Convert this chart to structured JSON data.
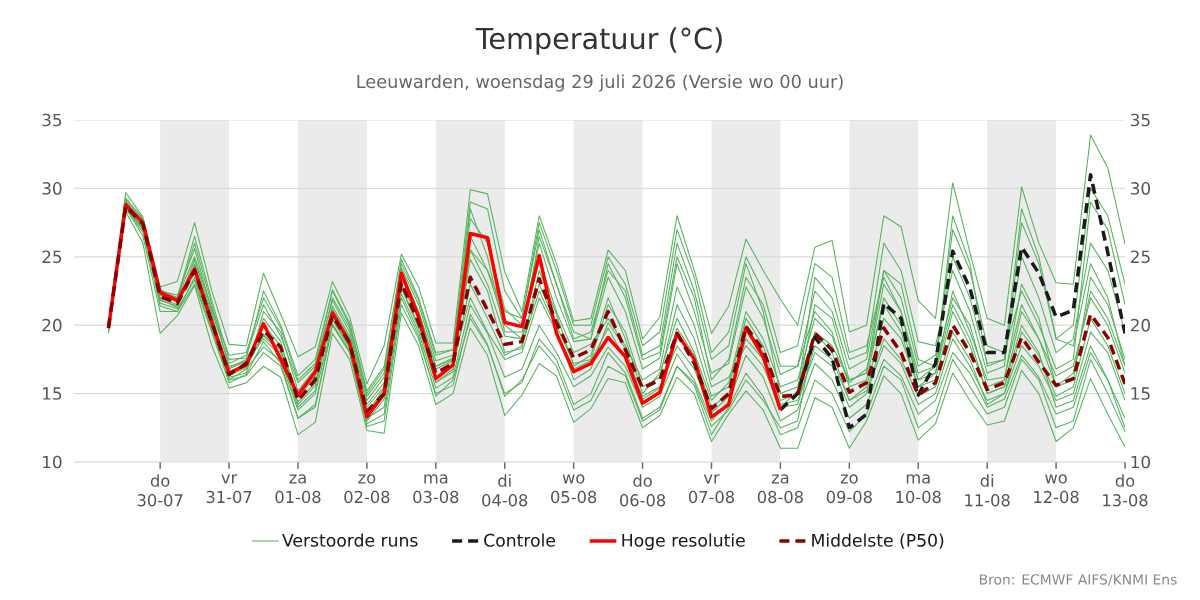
{
  "chart_data": {
    "type": "line",
    "title": "Temperatuur (°C)",
    "subtitle": "Leeuwarden, woensdag 29 juli 2026 (Versie wo 00 uur)",
    "x": [
      "2026-07-29T06:00",
      "2026-07-29T12:00",
      "2026-07-29T18:00",
      "2026-07-30T00:00",
      "2026-07-30T06:00",
      "2026-07-30T12:00",
      "2026-07-30T18:00",
      "2026-07-31T00:00",
      "2026-07-31T06:00",
      "2026-07-31T12:00",
      "2026-07-31T18:00",
      "2026-08-01T00:00",
      "2026-08-01T06:00",
      "2026-08-01T12:00",
      "2026-08-01T18:00",
      "2026-08-02T00:00",
      "2026-08-02T06:00",
      "2026-08-02T12:00",
      "2026-08-02T18:00",
      "2026-08-03T00:00",
      "2026-08-03T06:00",
      "2026-08-03T12:00",
      "2026-08-03T18:00",
      "2026-08-04T00:00",
      "2026-08-04T06:00",
      "2026-08-04T12:00",
      "2026-08-04T18:00",
      "2026-08-05T00:00",
      "2026-08-05T06:00",
      "2026-08-05T12:00",
      "2026-08-05T18:00",
      "2026-08-06T00:00",
      "2026-08-06T06:00",
      "2026-08-06T12:00",
      "2026-08-06T18:00",
      "2026-08-07T00:00",
      "2026-08-07T06:00",
      "2026-08-07T12:00",
      "2026-08-07T18:00",
      "2026-08-08T00:00",
      "2026-08-08T06:00",
      "2026-08-08T12:00",
      "2026-08-08T18:00",
      "2026-08-09T00:00",
      "2026-08-09T06:00",
      "2026-08-09T12:00",
      "2026-08-09T18:00",
      "2026-08-10T00:00",
      "2026-08-10T06:00",
      "2026-08-10T12:00",
      "2026-08-10T18:00",
      "2026-08-11T00:00",
      "2026-08-11T06:00",
      "2026-08-11T12:00",
      "2026-08-11T18:00",
      "2026-08-12T00:00",
      "2026-08-12T06:00",
      "2026-08-12T12:00",
      "2026-08-12T18:00",
      "2026-08-13T00:00"
    ],
    "xlim": [
      "2026-07-28T18:00",
      "2026-08-13T00:00"
    ],
    "xticks": [
      {
        "value": "2026-07-30",
        "label": "do 30-07"
      },
      {
        "value": "2026-07-31",
        "label": "vr 31-07"
      },
      {
        "value": "2026-08-01",
        "label": "za 01-08"
      },
      {
        "value": "2026-08-02",
        "label": "zo 02-08"
      },
      {
        "value": "2026-08-03",
        "label": "ma 03-08"
      },
      {
        "value": "2026-08-04",
        "label": "di 04-08"
      },
      {
        "value": "2026-08-05",
        "label": "wo 05-08"
      },
      {
        "value": "2026-08-06",
        "label": "do 06-08"
      },
      {
        "value": "2026-08-07",
        "label": "vr 07-08"
      },
      {
        "value": "2026-08-08",
        "label": "za 08-08"
      },
      {
        "value": "2026-08-09",
        "label": "zo 09-08"
      },
      {
        "value": "2026-08-10",
        "label": "ma 10-08"
      },
      {
        "value": "2026-08-11",
        "label": "di 11-08"
      },
      {
        "value": "2026-08-12",
        "label": "wo 12-08"
      },
      {
        "value": "2026-08-13",
        "label": "do 13-08"
      }
    ],
    "ylim": [
      10,
      35
    ],
    "yticks": [
      10,
      15,
      20,
      25,
      30,
      35
    ],
    "y2lim": [
      10,
      35
    ],
    "y2ticks": [
      10,
      15,
      20,
      25,
      30,
      35
    ],
    "grid": "y",
    "legend": "bottom",
    "bands": [
      {
        "axis": "x",
        "from": "2026-07-30",
        "to": "2026-07-31",
        "color": "#ebebeb"
      },
      {
        "axis": "x",
        "from": "2026-08-01",
        "to": "2026-08-02",
        "color": "#ebebeb"
      },
      {
        "axis": "x",
        "from": "2026-08-03",
        "to": "2026-08-04",
        "color": "#ebebeb"
      },
      {
        "axis": "x",
        "from": "2026-08-05",
        "to": "2026-08-06",
        "color": "#ebebeb"
      },
      {
        "axis": "x",
        "from": "2026-08-07",
        "to": "2026-08-08",
        "color": "#ebebeb"
      },
      {
        "axis": "x",
        "from": "2026-08-09",
        "to": "2026-08-10",
        "color": "#ebebeb"
      },
      {
        "axis": "x",
        "from": "2026-08-11",
        "to": "2026-08-12",
        "color": "#ebebeb"
      }
    ],
    "series": [
      {
        "name": "Verstoorde runs",
        "color": "#56b35e",
        "line_style": "solid",
        "values": [
          20.0,
          29.7,
          27.9,
          22.8,
          23.2,
          27.5,
          22.5,
          18.6,
          18.5,
          23.8,
          20.8,
          17.7,
          18.4,
          23.2,
          20.6,
          15.7,
          18.5,
          25.2,
          22.8,
          18.7,
          18.7,
          29.9,
          29.6,
          23.9,
          21.0,
          28.0,
          24.5,
          20.3,
          20.5,
          25.5,
          24.0,
          19.0,
          20.6,
          28.0,
          24.0,
          19.4,
          21.4,
          26.3,
          24.0,
          21.9,
          20.0,
          25.7,
          26.2,
          19.5,
          20.0,
          28.0,
          27.2,
          21.8,
          20.5,
          30.4,
          25.3,
          20.5,
          20.0,
          30.1,
          26.0,
          23.1,
          23.0,
          33.9,
          31.5,
          25.9
        ]
      },
      {
        "color": "#56b35e",
        "line_style": "solid",
        "values": [
          19.4,
          28.3,
          26.0,
          19.4,
          20.7,
          22.9,
          18.5,
          15.4,
          15.8,
          17.0,
          16.2,
          12.0,
          12.9,
          19.4,
          17.5,
          12.3,
          12.1,
          20.9,
          18.5,
          14.2,
          15.0,
          19.8,
          17.8,
          13.4,
          14.9,
          17.2,
          16.3,
          12.9,
          13.9,
          16.1,
          15.8,
          12.5,
          13.4,
          16.2,
          15.0,
          11.5,
          13.5,
          15.2,
          13.8,
          11.0,
          11.0,
          14.7,
          14.0,
          11.0,
          13.0,
          16.3,
          15.0,
          11.6,
          12.8,
          16.5,
          14.5,
          12.7,
          13.0,
          16.7,
          15.0,
          11.5,
          12.5,
          16.1,
          13.5,
          11.1
        ]
      },
      {
        "color": "#56b35e",
        "line_style": "solid",
        "values": [
          19.9,
          29.2,
          27.7,
          22.5,
          22.2,
          25.6,
          21.0,
          17.2,
          17.8,
          21.5,
          19.2,
          15.8,
          17.0,
          21.8,
          19.5,
          14.5,
          16.2,
          24.2,
          21.5,
          17.4,
          17.8,
          27.8,
          26.0,
          21.2,
          20.0,
          26.0,
          22.0,
          18.8,
          19.0,
          23.5,
          21.0,
          16.8,
          17.6,
          24.5,
          21.0,
          16.5,
          17.2,
          22.8,
          20.5,
          16.4,
          17.0,
          22.5,
          21.0,
          16.8,
          17.5,
          24.0,
          22.0,
          17.0,
          17.8,
          25.0,
          22.0,
          17.2,
          17.5,
          25.0,
          22.0,
          18.0,
          19.0,
          26.0,
          24.0,
          19.5
        ]
      },
      {
        "color": "#56b35e",
        "line_style": "solid",
        "values": [
          19.6,
          28.5,
          26.8,
          21.6,
          21.2,
          23.3,
          19.6,
          16.0,
          16.8,
          18.4,
          17.4,
          13.8,
          15.0,
          20.1,
          18.1,
          13.2,
          14.0,
          22.3,
          19.5,
          15.4,
          16.2,
          21.5,
          19.4,
          16.2,
          16.8,
          20.0,
          18.0,
          15.5,
          16.3,
          18.4,
          17.0,
          14.0,
          14.8,
          17.9,
          16.0,
          13.0,
          14.4,
          17.8,
          16.2,
          13.0,
          13.8,
          17.2,
          16.0,
          13.2,
          14.2,
          17.5,
          16.3,
          13.5,
          14.5,
          18.0,
          16.5,
          14.0,
          14.6,
          17.8,
          16.2,
          13.5,
          14.0,
          18.0,
          16.0,
          13.2
        ]
      },
      {
        "color": "#56b35e",
        "line_style": "solid",
        "values": [
          19.8,
          28.9,
          27.2,
          22.0,
          21.5,
          24.5,
          20.5,
          16.6,
          17.0,
          20.5,
          18.8,
          14.2,
          15.6,
          21.2,
          19.0,
          13.5,
          15.4,
          23.5,
          20.8,
          16.2,
          17.0,
          24.8,
          22.5,
          18.0,
          18.3,
          24.0,
          20.8,
          17.0,
          17.8,
          22.0,
          19.0,
          15.0,
          16.5,
          20.5,
          18.0,
          14.5,
          15.8,
          21.0,
          19.0,
          15.5,
          16.0,
          20.5,
          19.2,
          15.8,
          16.8,
          21.5,
          19.5,
          15.5,
          16.5,
          22.5,
          19.5,
          16.0,
          16.2,
          21.5,
          19.0,
          16.3,
          17.0,
          22.0,
          20.0,
          16.5
        ]
      },
      {
        "color": "#56b35e",
        "line_style": "solid",
        "values": [
          19.7,
          29.0,
          27.6,
          22.3,
          21.9,
          26.0,
          21.5,
          17.0,
          17.3,
          19.2,
          18.0,
          15.0,
          16.3,
          20.4,
          18.3,
          14.0,
          15.5,
          24.0,
          21.0,
          17.0,
          17.6,
          28.5,
          25.0,
          19.5,
          19.5,
          24.8,
          21.0,
          18.0,
          18.6,
          20.5,
          18.5,
          16.0,
          16.8,
          22.8,
          20.0,
          15.5,
          16.2,
          18.5,
          17.0,
          14.0,
          15.2,
          23.5,
          22.0,
          17.5,
          18.0,
          26.0,
          24.0,
          18.8,
          18.5,
          24.0,
          21.0,
          16.5,
          17.0,
          27.5,
          24.5,
          19.0,
          18.5,
          24.5,
          22.0,
          17.0
        ]
      },
      {
        "color": "#56b35e",
        "line_style": "solid",
        "values": [
          19.9,
          28.6,
          27.0,
          22.2,
          21.7,
          23.8,
          20.0,
          16.8,
          17.4,
          19.0,
          17.8,
          14.0,
          15.2,
          21.0,
          18.9,
          13.0,
          14.6,
          22.8,
          20.0,
          16.8,
          17.4,
          22.0,
          19.5,
          17.5,
          18.0,
          22.0,
          19.5,
          16.8,
          17.4,
          19.8,
          17.5,
          14.8,
          15.5,
          18.5,
          16.8,
          13.6,
          14.8,
          20.0,
          18.0,
          14.2,
          14.5,
          18.0,
          17.0,
          14.0,
          15.0,
          18.5,
          17.2,
          14.2,
          15.0,
          19.0,
          17.0,
          14.5,
          15.0,
          18.5,
          17.0,
          14.5,
          15.0,
          19.5,
          18.0,
          14.5
        ]
      },
      {
        "color": "#56b35e",
        "line_style": "solid",
        "values": [
          19.6,
          28.4,
          27.3,
          21.8,
          21.4,
          24.8,
          20.8,
          16.2,
          16.5,
          21.0,
          19.5,
          15.2,
          16.8,
          22.0,
          19.8,
          14.8,
          16.5,
          23.0,
          20.5,
          15.8,
          16.6,
          25.5,
          24.0,
          20.0,
          19.0,
          26.5,
          23.0,
          19.5,
          19.0,
          24.5,
          22.0,
          17.5,
          18.0,
          25.0,
          22.0,
          16.0,
          17.5,
          23.5,
          21.5,
          17.0,
          17.0,
          21.0,
          19.5,
          15.5,
          16.0,
          22.0,
          20.0,
          16.0,
          17.0,
          27.0,
          24.0,
          18.5,
          18.0,
          22.5,
          20.0,
          16.8,
          17.5,
          29.0,
          27.0,
          21.5
        ]
      },
      {
        "color": "#56b35e",
        "line_style": "solid",
        "values": [
          19.7,
          29.3,
          27.8,
          22.6,
          22.0,
          26.5,
          21.8,
          17.5,
          17.6,
          22.5,
          20.0,
          16.3,
          17.5,
          22.5,
          20.0,
          15.0,
          16.8,
          24.8,
          22.0,
          18.0,
          18.2,
          29.0,
          28.5,
          22.5,
          20.5,
          27.0,
          23.0,
          19.0,
          19.5,
          24.0,
          22.5,
          17.8,
          18.5,
          26.0,
          22.5,
          17.5,
          18.5,
          24.5,
          21.0,
          15.0,
          15.5,
          19.5,
          18.0,
          14.5,
          15.5,
          20.5,
          19.0,
          15.5,
          16.0,
          21.0,
          18.5,
          15.0,
          15.5,
          20.0,
          18.0,
          14.0,
          14.5,
          18.5,
          16.0,
          12.5
        ]
      },
      {
        "color": "#56b35e",
        "line_style": "solid",
        "values": [
          19.5,
          28.6,
          26.5,
          21.0,
          21.0,
          23.5,
          19.8,
          16.0,
          16.3,
          18.0,
          17.0,
          13.2,
          14.2,
          20.0,
          18.0,
          12.8,
          13.5,
          22.0,
          19.2,
          14.8,
          16.0,
          20.5,
          18.5,
          15.0,
          15.8,
          19.0,
          17.5,
          14.2,
          15.0,
          18.0,
          16.5,
          13.2,
          14.0,
          17.0,
          15.8,
          12.6,
          13.8,
          16.0,
          14.5,
          12.5,
          13.0,
          19.5,
          18.5,
          16.0,
          16.5,
          24.0,
          23.0,
          17.5,
          17.0,
          28.0,
          24.5,
          17.0,
          17.5,
          28.5,
          25.0,
          19.0,
          20.0,
          30.0,
          28.0,
          23.0
        ]
      },
      {
        "color": "#56b35e",
        "line_style": "solid",
        "values": [
          19.8,
          28.8,
          27.1,
          22.2,
          21.8,
          24.2,
          20.4,
          16.9,
          17.5,
          20.0,
          18.5,
          14.8,
          16.2,
          21.4,
          19.2,
          14.2,
          15.8,
          23.6,
          21.0,
          17.0,
          17.5,
          25.5,
          23.0,
          19.2,
          19.0,
          23.0,
          20.0,
          17.2,
          17.5,
          21.5,
          19.5,
          15.5,
          16.2,
          21.5,
          19.0,
          14.8,
          15.5,
          20.5,
          18.5,
          14.5,
          15.0,
          21.5,
          20.5,
          16.0,
          16.5,
          23.0,
          21.0,
          16.5,
          17.0,
          22.0,
          20.0,
          15.5,
          16.0,
          23.0,
          20.5,
          15.5,
          16.0,
          23.5,
          21.5,
          17.5
        ]
      },
      {
        "color": "#56b35e",
        "line_style": "solid",
        "values": [
          19.6,
          28.7,
          27.0,
          21.9,
          21.3,
          24.3,
          20.0,
          16.3,
          16.9,
          19.3,
          18.2,
          14.4,
          15.8,
          20.5,
          18.4,
          13.8,
          14.8,
          22.7,
          19.8,
          15.8,
          16.8,
          23.0,
          20.5,
          17.8,
          18.5,
          22.5,
          19.8,
          16.0,
          16.8,
          20.2,
          18.3,
          14.6,
          15.4,
          19.8,
          17.8,
          14.0,
          15.0,
          19.0,
          17.5,
          14.0,
          14.2,
          18.5,
          17.5,
          14.5,
          15.2,
          19.0,
          17.5,
          14.8,
          15.5,
          19.5,
          17.5,
          14.2,
          15.0,
          19.5,
          17.8,
          14.8,
          15.5,
          20.5,
          18.5,
          15.0
        ]
      },
      {
        "color": "#56b35e",
        "line_style": "solid",
        "values": [
          19.9,
          29.1,
          27.4,
          22.4,
          22.0,
          25.0,
          21.2,
          17.8,
          18.0,
          22.0,
          19.8,
          16.0,
          17.2,
          22.6,
          20.2,
          15.2,
          17.0,
          24.5,
          21.8,
          17.8,
          18.2,
          26.5,
          24.0,
          21.0,
          20.5,
          27.5,
          24.0,
          20.0,
          20.0,
          25.0,
          23.0,
          18.5,
          19.5,
          27.0,
          23.5,
          18.0,
          19.5,
          25.0,
          22.5,
          18.0,
          18.5,
          24.5,
          23.5,
          18.0,
          18.5,
          23.5,
          21.0,
          16.0,
          16.5,
          21.5,
          19.0,
          15.0,
          15.5,
          21.0,
          19.0,
          15.5,
          16.5,
          22.5,
          20.5,
          17.0
        ]
      },
      {
        "color": "#56b35e",
        "line_style": "solid",
        "values": [
          19.7,
          28.5,
          27.1,
          21.4,
          21.0,
          23.0,
          19.5,
          15.8,
          16.4,
          18.8,
          17.2,
          13.2,
          14.0,
          20.0,
          18.0,
          12.6,
          13.0,
          21.5,
          19.0,
          15.0,
          15.6,
          20.8,
          18.6,
          14.8,
          16.0,
          18.5,
          17.0,
          13.8,
          14.5,
          17.0,
          16.3,
          13.0,
          13.8,
          17.0,
          15.6,
          12.0,
          14.0,
          16.5,
          14.8,
          12.0,
          12.5,
          16.0,
          15.0,
          12.2,
          13.5,
          17.0,
          16.0,
          12.5,
          13.5,
          17.5,
          15.5,
          13.5,
          14.0,
          17.5,
          16.0,
          12.5,
          13.0,
          17.5,
          15.0,
          12.2
        ]
      },
      {
        "name": "Controle",
        "color": "#1a1a1a",
        "line_style": "dashed",
        "values": [
          null,
          null,
          null,
          null,
          null,
          null,
          null,
          null,
          null,
          null,
          null,
          null,
          null,
          null,
          null,
          null,
          null,
          null,
          null,
          null,
          null,
          null,
          null,
          null,
          null,
          null,
          null,
          null,
          null,
          null,
          null,
          null,
          null,
          null,
          null,
          null,
          null,
          null,
          null,
          13.8,
          15.0,
          19.1,
          17.6,
          12.5,
          13.5,
          21.6,
          20.5,
          14.9,
          17.2,
          25.4,
          22.7,
          18.0,
          18.0,
          25.7,
          23.8,
          20.6,
          21.1,
          31.0,
          25.3,
          19.4
        ]
      },
      {
        "name": "Hoge resolutie",
        "color": "#ff0000",
        "line_style": "solid",
        "values": [
          19.8,
          28.8,
          27.5,
          22.4,
          21.8,
          24.1,
          20.2,
          16.5,
          17.1,
          20.1,
          17.5,
          14.9,
          16.6,
          20.9,
          18.7,
          13.3,
          15.0,
          23.8,
          20.6,
          16.1,
          17.1,
          26.7,
          26.4,
          20.2,
          19.9,
          25.1,
          19.4,
          16.6,
          17.2,
          19.1,
          17.7,
          14.3,
          15.1,
          19.4,
          17.5,
          13.3,
          14.2,
          19.8,
          17.7,
          13.8,
          null,
          null,
          null,
          null,
          null,
          null,
          null,
          null,
          null,
          null,
          null,
          null,
          null,
          null,
          null,
          null,
          null,
          null,
          null,
          null
        ]
      },
      {
        "name": "Middelste (P50)",
        "color": "#8b0000",
        "line_style": "dashed",
        "values": [
          19.8,
          28.7,
          27.4,
          22.1,
          21.6,
          24.0,
          20.2,
          16.4,
          17.2,
          19.6,
          18.4,
          14.5,
          16.0,
          20.7,
          18.7,
          13.7,
          15.0,
          23.1,
          20.2,
          16.5,
          17.2,
          23.5,
          21.1,
          18.6,
          18.8,
          23.4,
          20.2,
          17.6,
          18.2,
          21.0,
          18.2,
          15.4,
          16.0,
          19.4,
          17.2,
          13.9,
          15.0,
          19.9,
          18.2,
          14.8,
          14.9,
          19.4,
          18.2,
          15.1,
          15.8,
          19.8,
          18.0,
          14.9,
          15.8,
          20.0,
          18.0,
          15.3,
          15.8,
          19.1,
          17.3,
          15.6,
          16.1,
          20.8,
          19.1,
          15.7
        ]
      }
    ],
    "annotations": [
      "Bron: ECMWF AIFS/KNMI Ens"
    ]
  }
}
